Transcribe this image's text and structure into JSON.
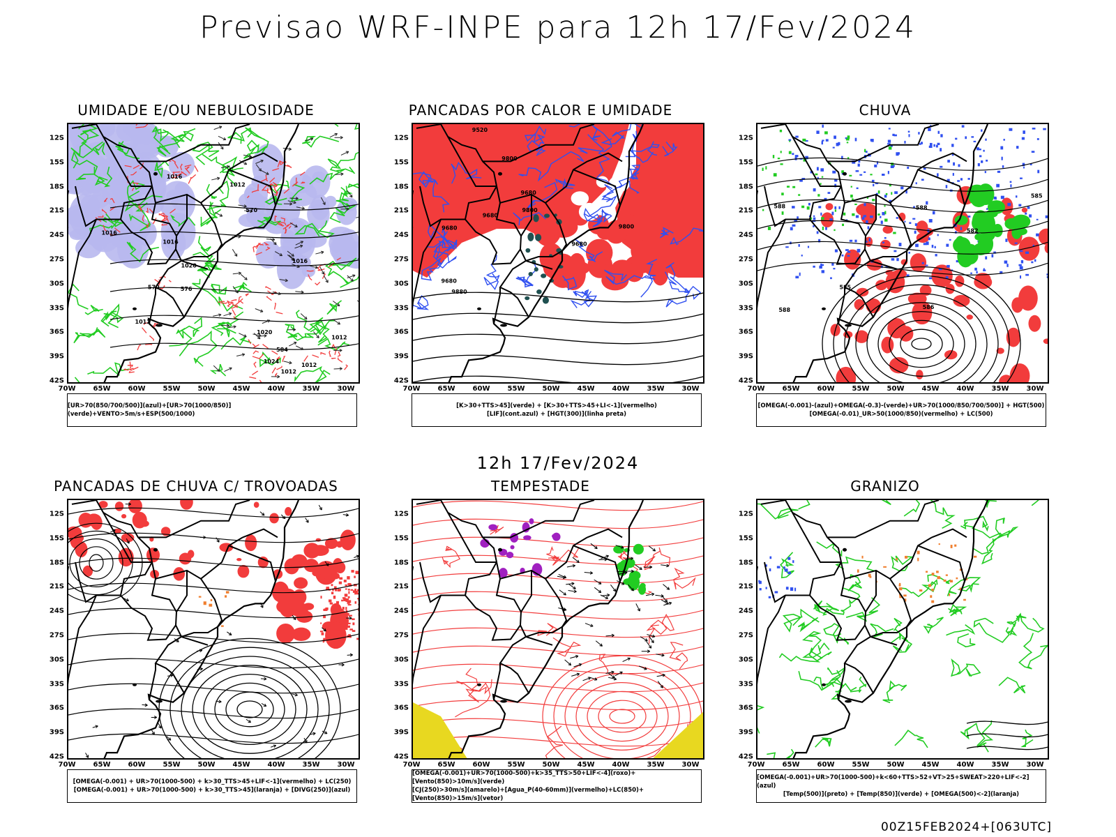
{
  "main_title": "Previsao WRF-INPE  para 12h 17/Fev/2024",
  "middle_title": "12h 17/Fev/2024",
  "footer": "00Z15FEB2024+[063UTC]",
  "lat_labels": [
    "12S",
    "15S",
    "18S",
    "21S",
    "24S",
    "27S",
    "30S",
    "33S",
    "36S",
    "39S",
    "42S"
  ],
  "lon_labels": [
    "70W",
    "65W",
    "60W",
    "55W",
    "50W",
    "45W",
    "40W",
    "35W",
    "30W"
  ],
  "colors": {
    "red": "#f23c3c",
    "green": "#22cc22",
    "blue": "#3050f0",
    "lavender": "#b8b8ee",
    "purple": "#a020c0",
    "yellow": "#e8d820",
    "orange": "#f08030",
    "darkteal": "#1f5050"
  },
  "panels": [
    {
      "title": "UMIDADE E/OU NEBULOSIDADE",
      "legend": [
        "[UR>70(850/700/500)](azul)+[UR>70(1000/850)](verde)+VENTO>5m/s+ESP(500/1000)"
      ]
    },
    {
      "title": "PANCADAS POR CALOR E UMIDADE",
      "legend": [
        "[K>30+TTS>45](verde) + [K>30+TTS>45+LI<-1](vermelho)",
        "[LIF](cont.azul) + [HGT(300)](linha preta)"
      ]
    },
    {
      "title": "CHUVA",
      "legend": [
        "[OMEGA(-0.001)-(azul)+OMEGA(-0.3)-(verde)+UR>70(1000/850/700/500)] + HGT(500)",
        "[OMEGA(-0.01)_UR>50(1000/850)(vermelho) + LC(500)"
      ]
    },
    {
      "title": "PANCADAS DE CHUVA C/ TROVOADAS",
      "legend": [
        "[OMEGA(-0.001) + UR>70(1000-500) + k>30_TTS>45+LIF<-1](vermelho) + LC(250)",
        "[OMEGA(-0.001) + UR>70(1000-500) + k>30_TTS>45](laranja) + [DIVG(250)](azul)"
      ]
    },
    {
      "title": "TEMPESTADE",
      "legend": [
        "[OMEGA(-0.001)+UR>70(1000-500)+k>35_TTS>50+LIF<-4](roxo)+[Vento(850)>10m/s](verde)",
        "[CJ(250)>30m/s](amarelo)+[Agua_P(40-60mm)](vermelho)+LC(850)+[Vento(850)>15m/s](vetor)"
      ]
    },
    {
      "title": "GRANIZO",
      "legend": [
        "[OMEGA(-0.001)+UR>70(1000-500)+k<60+TTS>52+VT>25+SWEAT>220+LIF<-2](azul)",
        "[Temp(500)](preto) + [Temp(850)](verde) + [OMEGA(500)<-2](laranja)"
      ]
    }
  ],
  "contour_labels": {
    "p1": [
      "1012",
      "1020",
      "1016",
      "1012",
      "1012",
      "1012",
      "1016",
      "1016",
      "1020",
      "1024",
      "1016",
      "1012",
      "576",
      "570",
      "570",
      "584"
    ],
    "p2": [
      "9680",
      "9680",
      "9680",
      "9800",
      "9520",
      "9680",
      "9800",
      "9800",
      "9880",
      "9680"
    ],
    "p3": [
      "588",
      "588",
      "582",
      "585",
      "585",
      "588",
      "586"
    ]
  }
}
